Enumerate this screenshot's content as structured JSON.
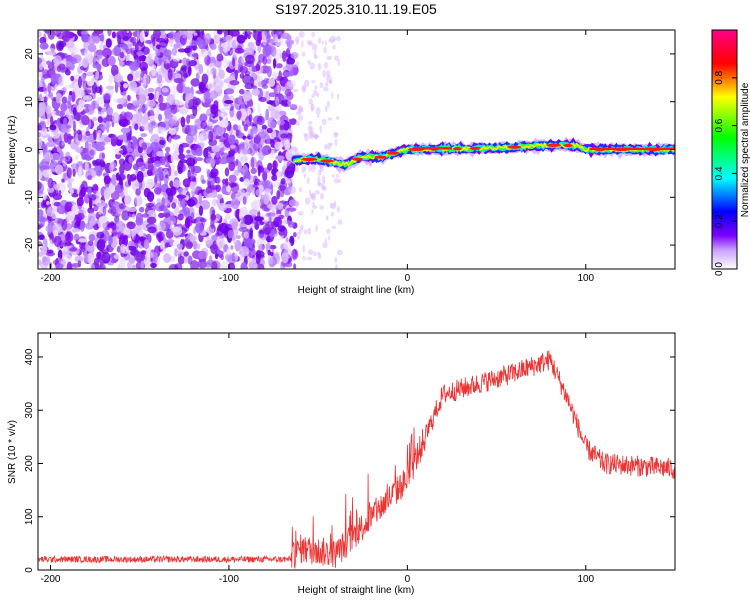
{
  "title": "S197.2025.310.11.19.E05",
  "chart_data": [
    {
      "type": "heatmap",
      "xlabel": "Height of straight line (km)",
      "ylabel": "Frequency (Hz)",
      "xlim": [
        -207,
        150
      ],
      "ylim": [
        -25,
        25
      ],
      "xticks": [
        -200,
        -100,
        0,
        100
      ],
      "yticks": [
        -20,
        -10,
        0,
        10,
        20
      ],
      "colorbar": {
        "label": "Normalized spectral amplitude",
        "range": [
          0,
          1
        ],
        "ticks": [
          0.0,
          0.2,
          0.4,
          0.6,
          0.8
        ],
        "tick_labels": [
          "0.0",
          "0.2",
          "0.4",
          "0.6",
          "0.8"
        ],
        "colors": [
          "#ffffff",
          "#7f00ff",
          "#0000ff",
          "#00ffff",
          "#00ff00",
          "#ffff00",
          "#ff0000",
          "#ff0080"
        ]
      },
      "ridge": {
        "description_points": [
          {
            "x": -63,
            "y": -2.2
          },
          {
            "x": -50,
            "y": -2.0
          },
          {
            "x": -35,
            "y": -3.2
          },
          {
            "x": -25,
            "y": -1.5
          },
          {
            "x": -15,
            "y": -1.6
          },
          {
            "x": -5,
            "y": -0.4
          },
          {
            "x": 0,
            "y": 0.0
          },
          {
            "x": 50,
            "y": 0.3
          },
          {
            "x": 80,
            "y": 0.9
          },
          {
            "x": 95,
            "y": 0.8
          },
          {
            "x": 100,
            "y": 0.0
          },
          {
            "x": 150,
            "y": 0.0
          }
        ]
      },
      "noise_region_x": [
        -207,
        -63
      ]
    },
    {
      "type": "line",
      "xlabel": "Height of straight line (km)",
      "ylabel": "SNR (10 * v/v)",
      "xlim": [
        -207,
        150
      ],
      "ylim": [
        0,
        445
      ],
      "xticks": [
        -200,
        -100,
        0,
        100
      ],
      "yticks": [
        0,
        100,
        200,
        300,
        400
      ],
      "color": "#ee3333",
      "envelope": [
        {
          "x": -207,
          "y": 20
        },
        {
          "x": -65,
          "y": 20
        },
        {
          "x": -60,
          "y": 40
        },
        {
          "x": -40,
          "y": 30
        },
        {
          "x": -20,
          "y": 100
        },
        {
          "x": 0,
          "y": 170
        },
        {
          "x": 10,
          "y": 250
        },
        {
          "x": 20,
          "y": 330
        },
        {
          "x": 40,
          "y": 350
        },
        {
          "x": 60,
          "y": 370
        },
        {
          "x": 80,
          "y": 395
        },
        {
          "x": 90,
          "y": 320
        },
        {
          "x": 100,
          "y": 230
        },
        {
          "x": 110,
          "y": 200
        },
        {
          "x": 150,
          "y": 190
        }
      ]
    }
  ]
}
